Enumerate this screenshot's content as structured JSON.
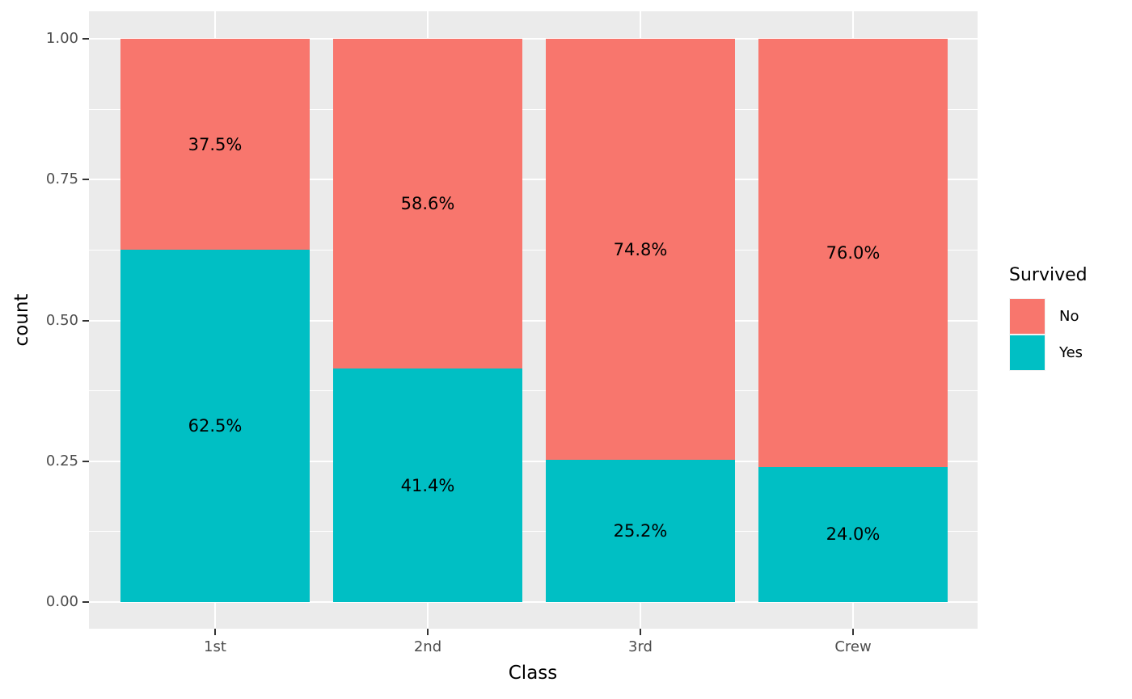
{
  "chart_data": {
    "type": "bar",
    "subtype": "stacked-proportion",
    "title": "",
    "xlabel": "Class",
    "ylabel": "count",
    "categories": [
      "1st",
      "2nd",
      "3rd",
      "Crew"
    ],
    "series": [
      {
        "name": "No",
        "color": "#F8766D",
        "values": [
          0.375,
          0.586,
          0.748,
          0.76
        ],
        "labels": [
          "37.5%",
          "58.6%",
          "74.8%",
          "76.0%"
        ]
      },
      {
        "name": "Yes",
        "color": "#00BFC4",
        "values": [
          0.625,
          0.414,
          0.252,
          0.24
        ],
        "labels": [
          "62.5%",
          "41.4%",
          "25.2%",
          "24.0%"
        ]
      }
    ],
    "ylim": [
      0,
      1
    ],
    "y_ticks": [
      {
        "value": 0.0,
        "label": "0.00"
      },
      {
        "value": 0.25,
        "label": "0.25"
      },
      {
        "value": 0.5,
        "label": "0.50"
      },
      {
        "value": 0.75,
        "label": "0.75"
      },
      {
        "value": 1.0,
        "label": "1.00"
      }
    ],
    "y_minor_ticks": [
      0.125,
      0.375,
      0.625,
      0.875
    ],
    "grid": "major-and-minor, white on gray panel",
    "legend": {
      "title": "Survived",
      "position": "right",
      "entries": [
        {
          "label": "No",
          "color": "#F8766D"
        },
        {
          "label": "Yes",
          "color": "#00BFC4"
        }
      ]
    },
    "colors": {
      "panel_background": "#EBEBEB",
      "grid": "#FFFFFF",
      "tick_label": "#4D4D4D",
      "tick_mark": "#333333",
      "axis_title": "#000000",
      "segment_label": "#000000"
    }
  }
}
